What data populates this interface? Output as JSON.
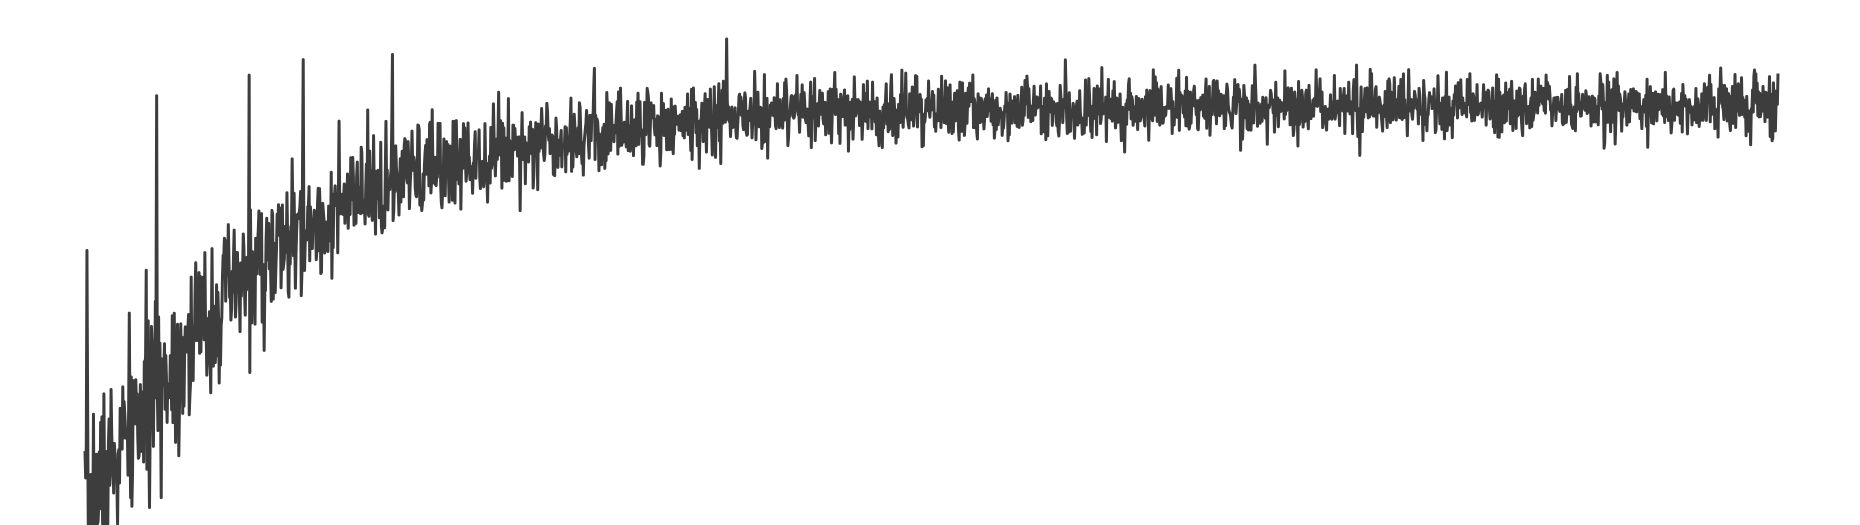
{
  "chart_data": {
    "type": "line",
    "title": "",
    "xlabel": "",
    "ylabel": "",
    "grid": false,
    "legend": "none",
    "line_color": "#3d3d3d",
    "n_points": 2600,
    "seed": 7,
    "curve": {
      "y_start": 0.0,
      "asymptote": 0.81,
      "tau": 280,
      "noise_start": 0.075,
      "noise_end": 0.022,
      "noise_tau": 420
    },
    "ylim": [
      0,
      1
    ],
    "spikes": [
      {
        "x": 3,
        "y": 0.53
      },
      {
        "x": 110,
        "y": 0.83
      },
      {
        "x": 252,
        "y": 0.87
      },
      {
        "x": 335,
        "y": 0.9
      },
      {
        "x": 472,
        "y": 0.91
      },
      {
        "x": 985,
        "y": 0.94
      },
      {
        "x": 1640,
        "y": 0.88
      },
      {
        "x": 1890,
        "y": 0.88
      }
    ]
  }
}
